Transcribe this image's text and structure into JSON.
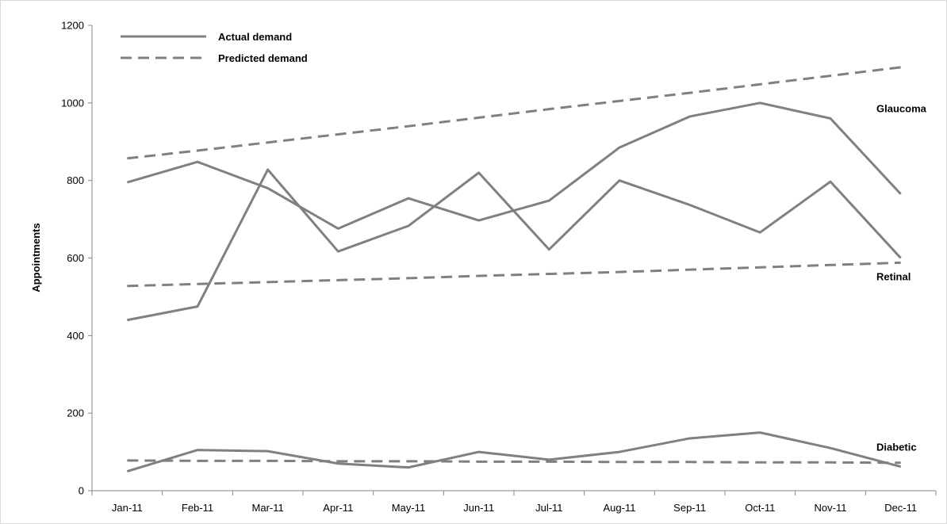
{
  "chart_data": {
    "type": "line",
    "categories": [
      "Jan-11",
      "Feb-11",
      "Mar-11",
      "Apr-11",
      "May-11",
      "Jun-11",
      "Jul-11",
      "Aug-11",
      "Sep-11",
      "Oct-11",
      "Nov-11",
      "Dec-11"
    ],
    "ylabel": "Appointments",
    "xlabel": "",
    "ylim": [
      0,
      1200
    ],
    "yticks": [
      "0",
      "200",
      "400",
      "600",
      "800",
      "1000",
      "1200"
    ],
    "grid": false,
    "legend": {
      "placement": "top-left",
      "entries": [
        {
          "label": "Actual demand",
          "style": "solid"
        },
        {
          "label": "Predicted demand",
          "style": "dashed"
        }
      ]
    },
    "series_color": "#808080",
    "groups": [
      {
        "label": "Glaucoma",
        "actual": [
          795,
          848,
          780,
          676,
          754,
          697,
          748,
          885,
          965,
          1000,
          960,
          765
        ],
        "predicted": [
          857,
          877,
          898,
          919,
          940,
          962,
          984,
          1005,
          1026,
          1048,
          1070,
          1092
        ]
      },
      {
        "label": "Retinal",
        "actual": [
          440,
          475,
          828,
          617,
          683,
          820,
          622,
          800,
          737,
          666,
          797,
          600
        ],
        "predicted": [
          528,
          533,
          538,
          543,
          548,
          554,
          559,
          564,
          570,
          576,
          582,
          588
        ]
      },
      {
        "label": "Diabetic",
        "actual": [
          50,
          105,
          102,
          70,
          60,
          100,
          80,
          100,
          135,
          150,
          110,
          62
        ],
        "predicted": [
          78,
          77,
          77,
          76,
          76,
          75,
          75,
          74,
          74,
          73,
          73,
          72
        ]
      }
    ]
  }
}
